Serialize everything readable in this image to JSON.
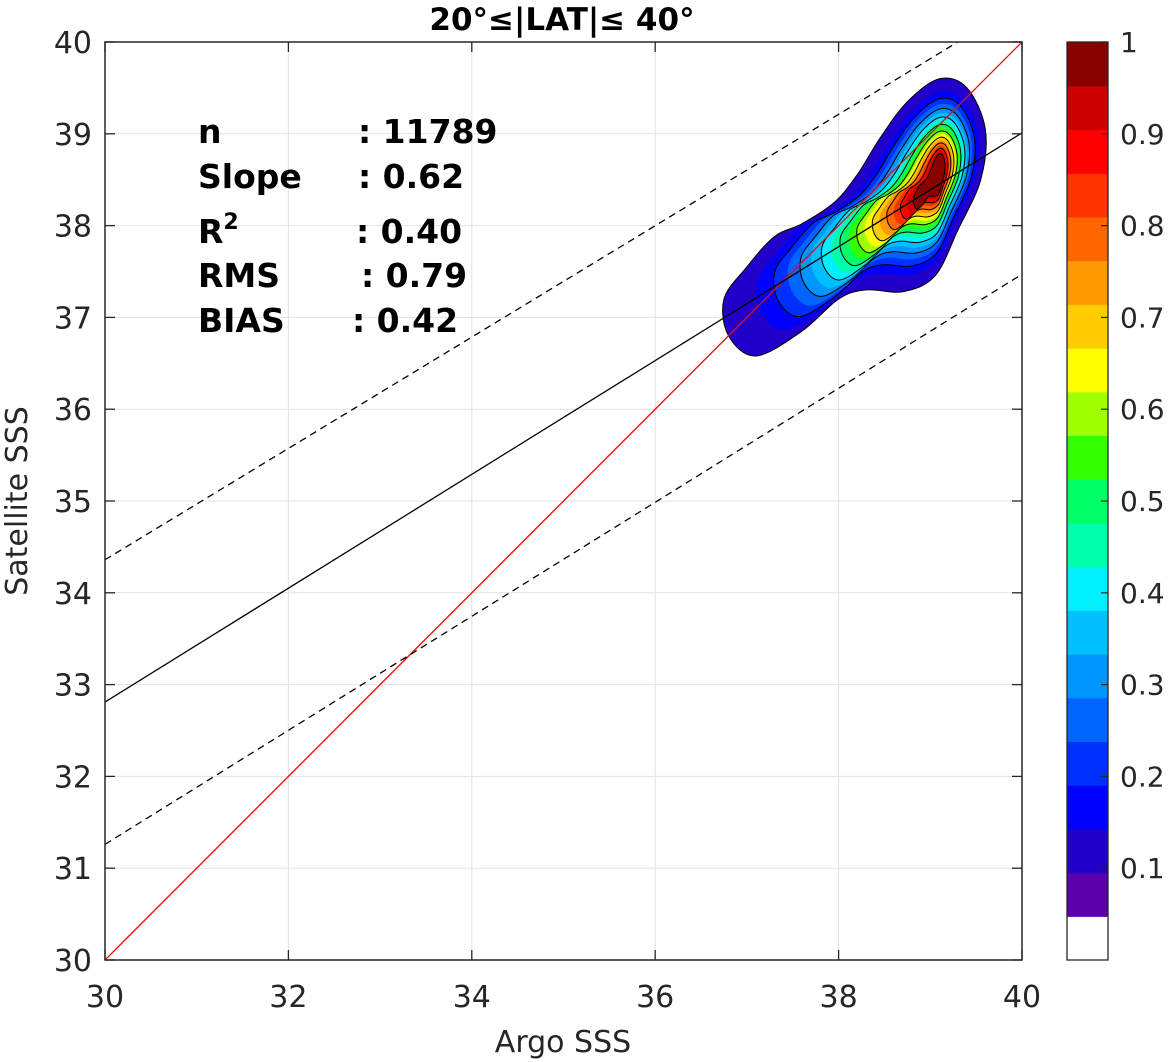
{
  "chart_data": {
    "type": "contour",
    "title": "20°≤|LAT|≤ 40°",
    "xlabel": "Argo SSS",
    "ylabel": "Satellite SSS",
    "xlim": [
      30,
      40
    ],
    "ylim": [
      30,
      40
    ],
    "xticks": [
      30,
      32,
      34,
      36,
      38,
      40
    ],
    "yticks": [
      30,
      31,
      32,
      33,
      34,
      35,
      36,
      37,
      38,
      39,
      40
    ],
    "grid": true,
    "stats": [
      {
        "label": "n",
        "sep": ":",
        "value": "11789"
      },
      {
        "label": "Slope",
        "sep": ":",
        "value": "0.62"
      },
      {
        "label": "R",
        "sup": "2",
        "sep": ":",
        "value": "0.40"
      },
      {
        "label": "RMS",
        "sep": ":",
        "value": "0.79"
      },
      {
        "label": "BIAS",
        "sep": ":",
        "value": "0.42"
      }
    ],
    "lines": [
      {
        "id": "one-to-one",
        "color": "#ff0000",
        "style": "solid",
        "points": [
          [
            30,
            30
          ],
          [
            40,
            40
          ]
        ]
      },
      {
        "id": "regression-fit",
        "color": "#000000",
        "style": "solid",
        "points": [
          [
            30,
            32.81
          ],
          [
            40,
            39.01
          ]
        ]
      },
      {
        "id": "upper-bound",
        "color": "#000000",
        "style": "dashed",
        "points": [
          [
            30,
            34.36
          ],
          [
            39.3,
            40
          ]
        ]
      },
      {
        "id": "lower-bound",
        "color": "#000000",
        "style": "dashed",
        "points": [
          [
            30,
            31.26
          ],
          [
            40,
            37.47
          ]
        ]
      }
    ],
    "density_peak": {
      "x": 39.05,
      "y": 38.55
    },
    "contour_levels": [
      0.05,
      0.1,
      0.15,
      0.2,
      0.25,
      0.3,
      0.35,
      0.4,
      0.45,
      0.5,
      0.55,
      0.6,
      0.65,
      0.7,
      0.75,
      0.8,
      0.85,
      0.9,
      0.95
    ],
    "colorbar": {
      "min": 0,
      "max": 1,
      "tick_values": [
        0.1,
        0.2,
        0.3,
        0.4,
        0.5,
        0.6,
        0.7,
        0.8,
        0.9,
        1
      ],
      "tick_labels": [
        "0.1",
        "0.2",
        "0.3",
        "0.4",
        "0.5",
        "0.6",
        "0.7",
        "0.8",
        "0.9",
        "1"
      ],
      "colors": [
        "#ffffff",
        "#5a00aa",
        "#2200cc",
        "#0000ff",
        "#0030ff",
        "#0064ff",
        "#0096ff",
        "#00bfff",
        "#00f0ff",
        "#00ffaa",
        "#00ff66",
        "#33ff00",
        "#a0ff00",
        "#ffff00",
        "#ffcc00",
        "#ff9900",
        "#ff6600",
        "#ff3300",
        "#ff0000",
        "#cc0000",
        "#880000"
      ]
    }
  }
}
